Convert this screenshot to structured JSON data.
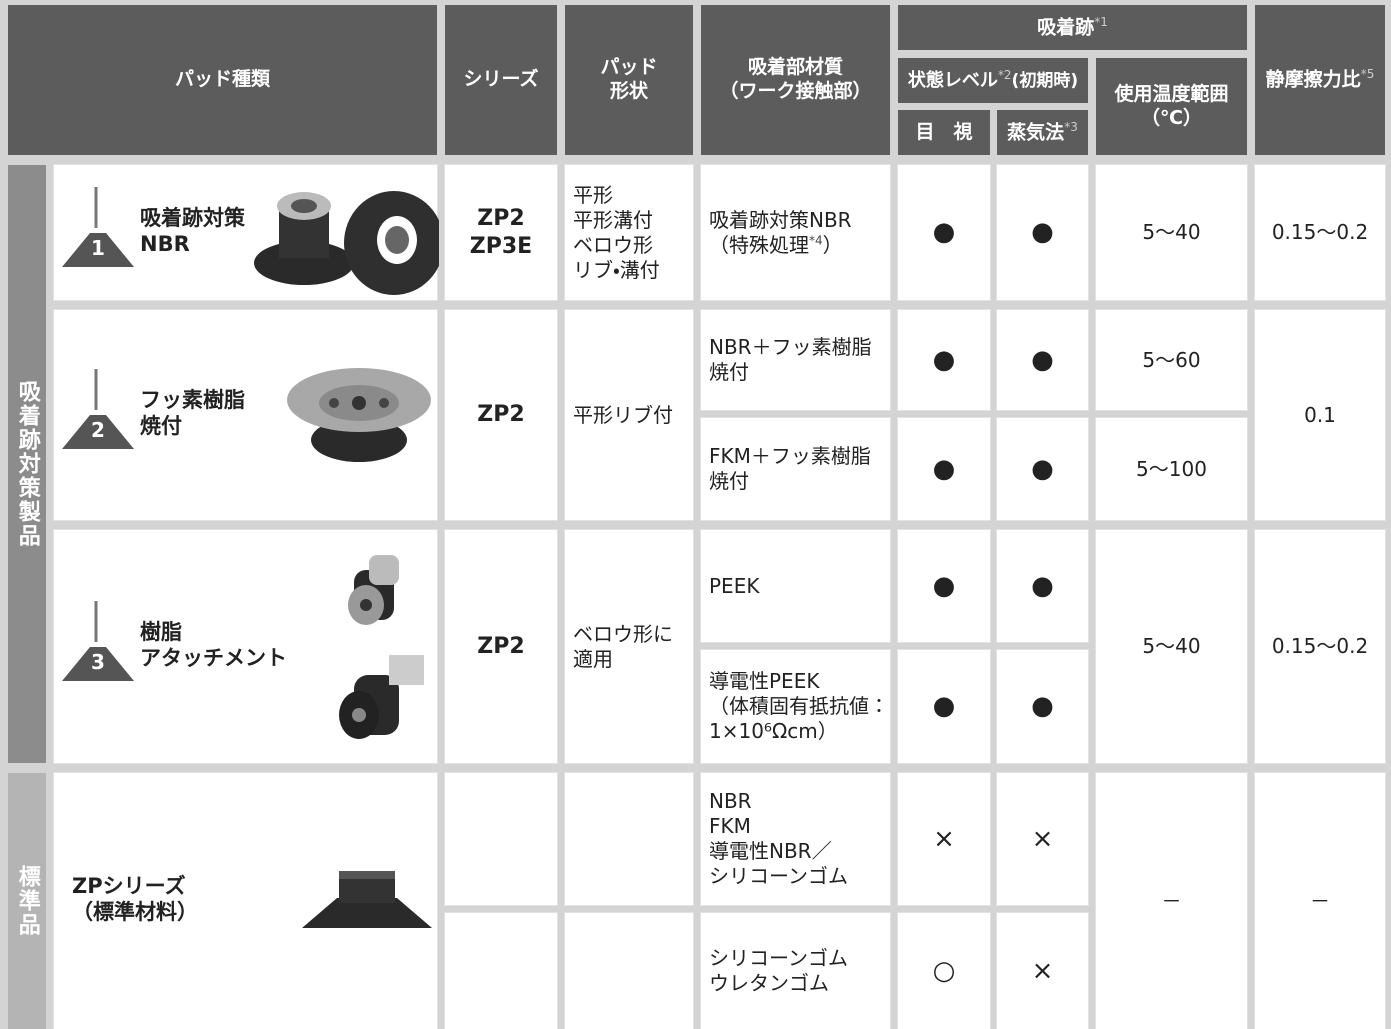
{
  "header": {
    "pad_type": "パッド種類",
    "series": "シリーズ",
    "pad_shape": "パッド\n形状",
    "material": "吸着部材質\n（ワーク接触部）",
    "mark": {
      "title": "吸着跡",
      "note": "*1"
    },
    "state_level": {
      "title": "状態レベル",
      "note": "*2",
      "suffix": "(初期時)"
    },
    "visual": "目　視",
    "steam": {
      "title": "蒸気法",
      "note": "*3"
    },
    "temperature": "使用温度範囲\n（℃）",
    "friction": {
      "title": "静摩擦力比",
      "note": "*5"
    }
  },
  "groups": [
    {
      "label": "吸着跡対策製品"
    },
    {
      "label": "標準品"
    }
  ],
  "products": [
    {
      "number": "1",
      "name": "吸着跡対策\nNBR",
      "series": "ZP2\nZP3E",
      "shape": "平形\n平形溝付\nベロウ形\nリブ・溝付",
      "friction": "0.15～0.2",
      "materials": [
        {
          "text": "吸着跡対策NBR\n（特殊処理",
          "note": "*4",
          "suffix": "）",
          "visual": "●",
          "steam": "●",
          "temperature": "5～40"
        }
      ]
    },
    {
      "number": "2",
      "name": "フッ素樹脂\n焼付",
      "series": "ZP2",
      "shape": "平形リブ付",
      "friction": "0.1",
      "materials": [
        {
          "text": "NBR＋フッ素樹脂\n焼付",
          "visual": "●",
          "steam": "●",
          "temperature": "5～60"
        },
        {
          "text": "FKM＋フッ素樹脂\n焼付",
          "visual": "●",
          "steam": "●",
          "temperature": "5～100"
        }
      ]
    },
    {
      "number": "3",
      "name": "樹脂\nアタッチメント",
      "series": "ZP2",
      "shape": "ベロウ形に\n適用",
      "temperature": "5～40",
      "friction": "0.15～0.2",
      "materials": [
        {
          "text": "PEEK",
          "visual": "●",
          "steam": "●"
        },
        {
          "text": "導電性PEEK\n（体積固有抵抗値：\n1×10⁶Ωcm）",
          "visual": "●",
          "steam": "●"
        }
      ]
    },
    {
      "name": "ZPシリーズ\n（標準材料）",
      "temperature": "－",
      "friction": "－",
      "materials": [
        {
          "text": "NBR\nFKM\n導電性NBR／\nシリコーンゴム",
          "visual": "×",
          "steam": "×"
        },
        {
          "text": "シリコーンゴム\nウレタンゴム",
          "visual": "○",
          "steam": "×"
        }
      ]
    }
  ]
}
